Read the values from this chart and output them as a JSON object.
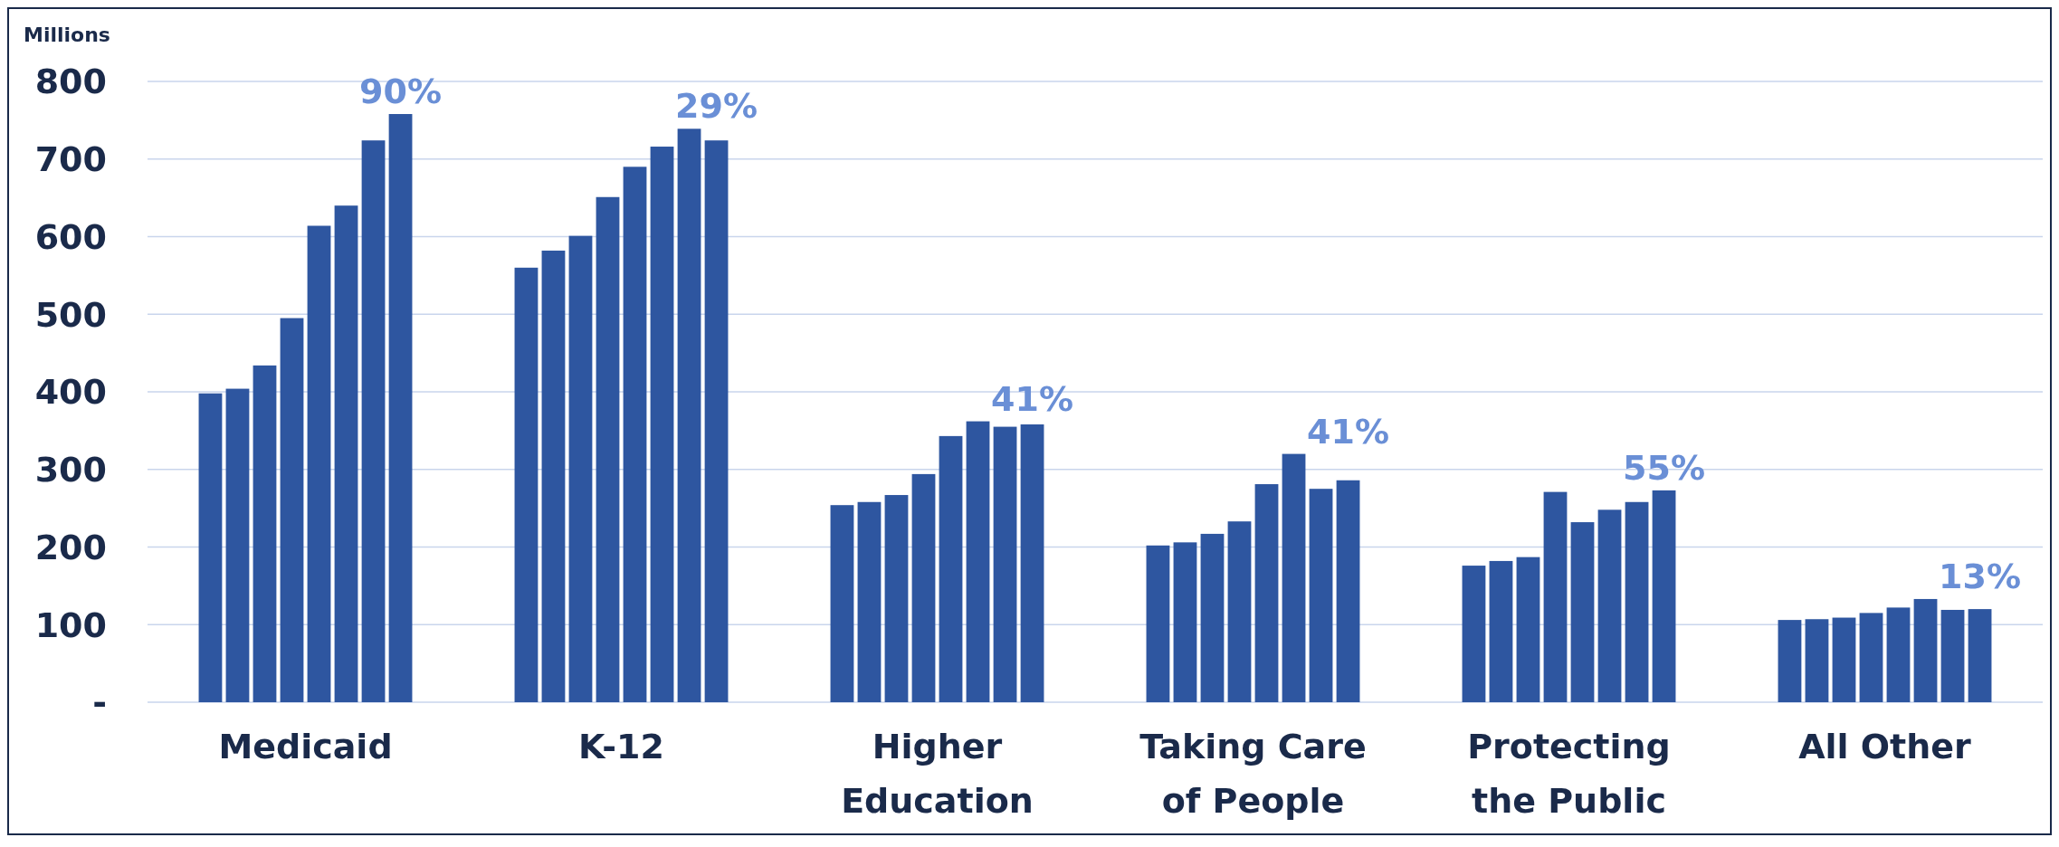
{
  "chart_data": {
    "type": "bar",
    "ylabel": "Millions",
    "categories": [
      "Medicaid",
      "K-12",
      "Higher Education",
      "Taking Care of People",
      "Protecting the Public",
      "All Other"
    ],
    "series": [
      {
        "color": "#2e56a0",
        "values": [
          398,
          560,
          254,
          202,
          176,
          106
        ]
      },
      {
        "color": "#2e56a0",
        "values": [
          404,
          582,
          258,
          206,
          182,
          107
        ]
      },
      {
        "color": "#2e56a0",
        "values": [
          434,
          601,
          267,
          217,
          187,
          109
        ]
      },
      {
        "color": "#2e56a0",
        "values": [
          495,
          651,
          294,
          233,
          271,
          115
        ]
      },
      {
        "color": "#2e56a0",
        "values": [
          614,
          690,
          343,
          281,
          232,
          122
        ]
      },
      {
        "color": "#2e56a0",
        "values": [
          640,
          716,
          362,
          320,
          248,
          133
        ]
      },
      {
        "color": "#2e56a0",
        "values": [
          724,
          739,
          355,
          275,
          258,
          119
        ]
      },
      {
        "color": "#2e56a0",
        "values": [
          758,
          724,
          358,
          286,
          273,
          120
        ]
      }
    ],
    "ylim": [
      0,
      800
    ],
    "yticks": [
      {
        "value": 0,
        "label": "-"
      },
      100,
      200,
      300,
      400,
      500,
      600,
      700,
      800
    ],
    "grid": "y",
    "annotations": [
      "90%",
      "29%",
      "41%",
      "41%",
      "55%",
      "13%"
    ]
  }
}
